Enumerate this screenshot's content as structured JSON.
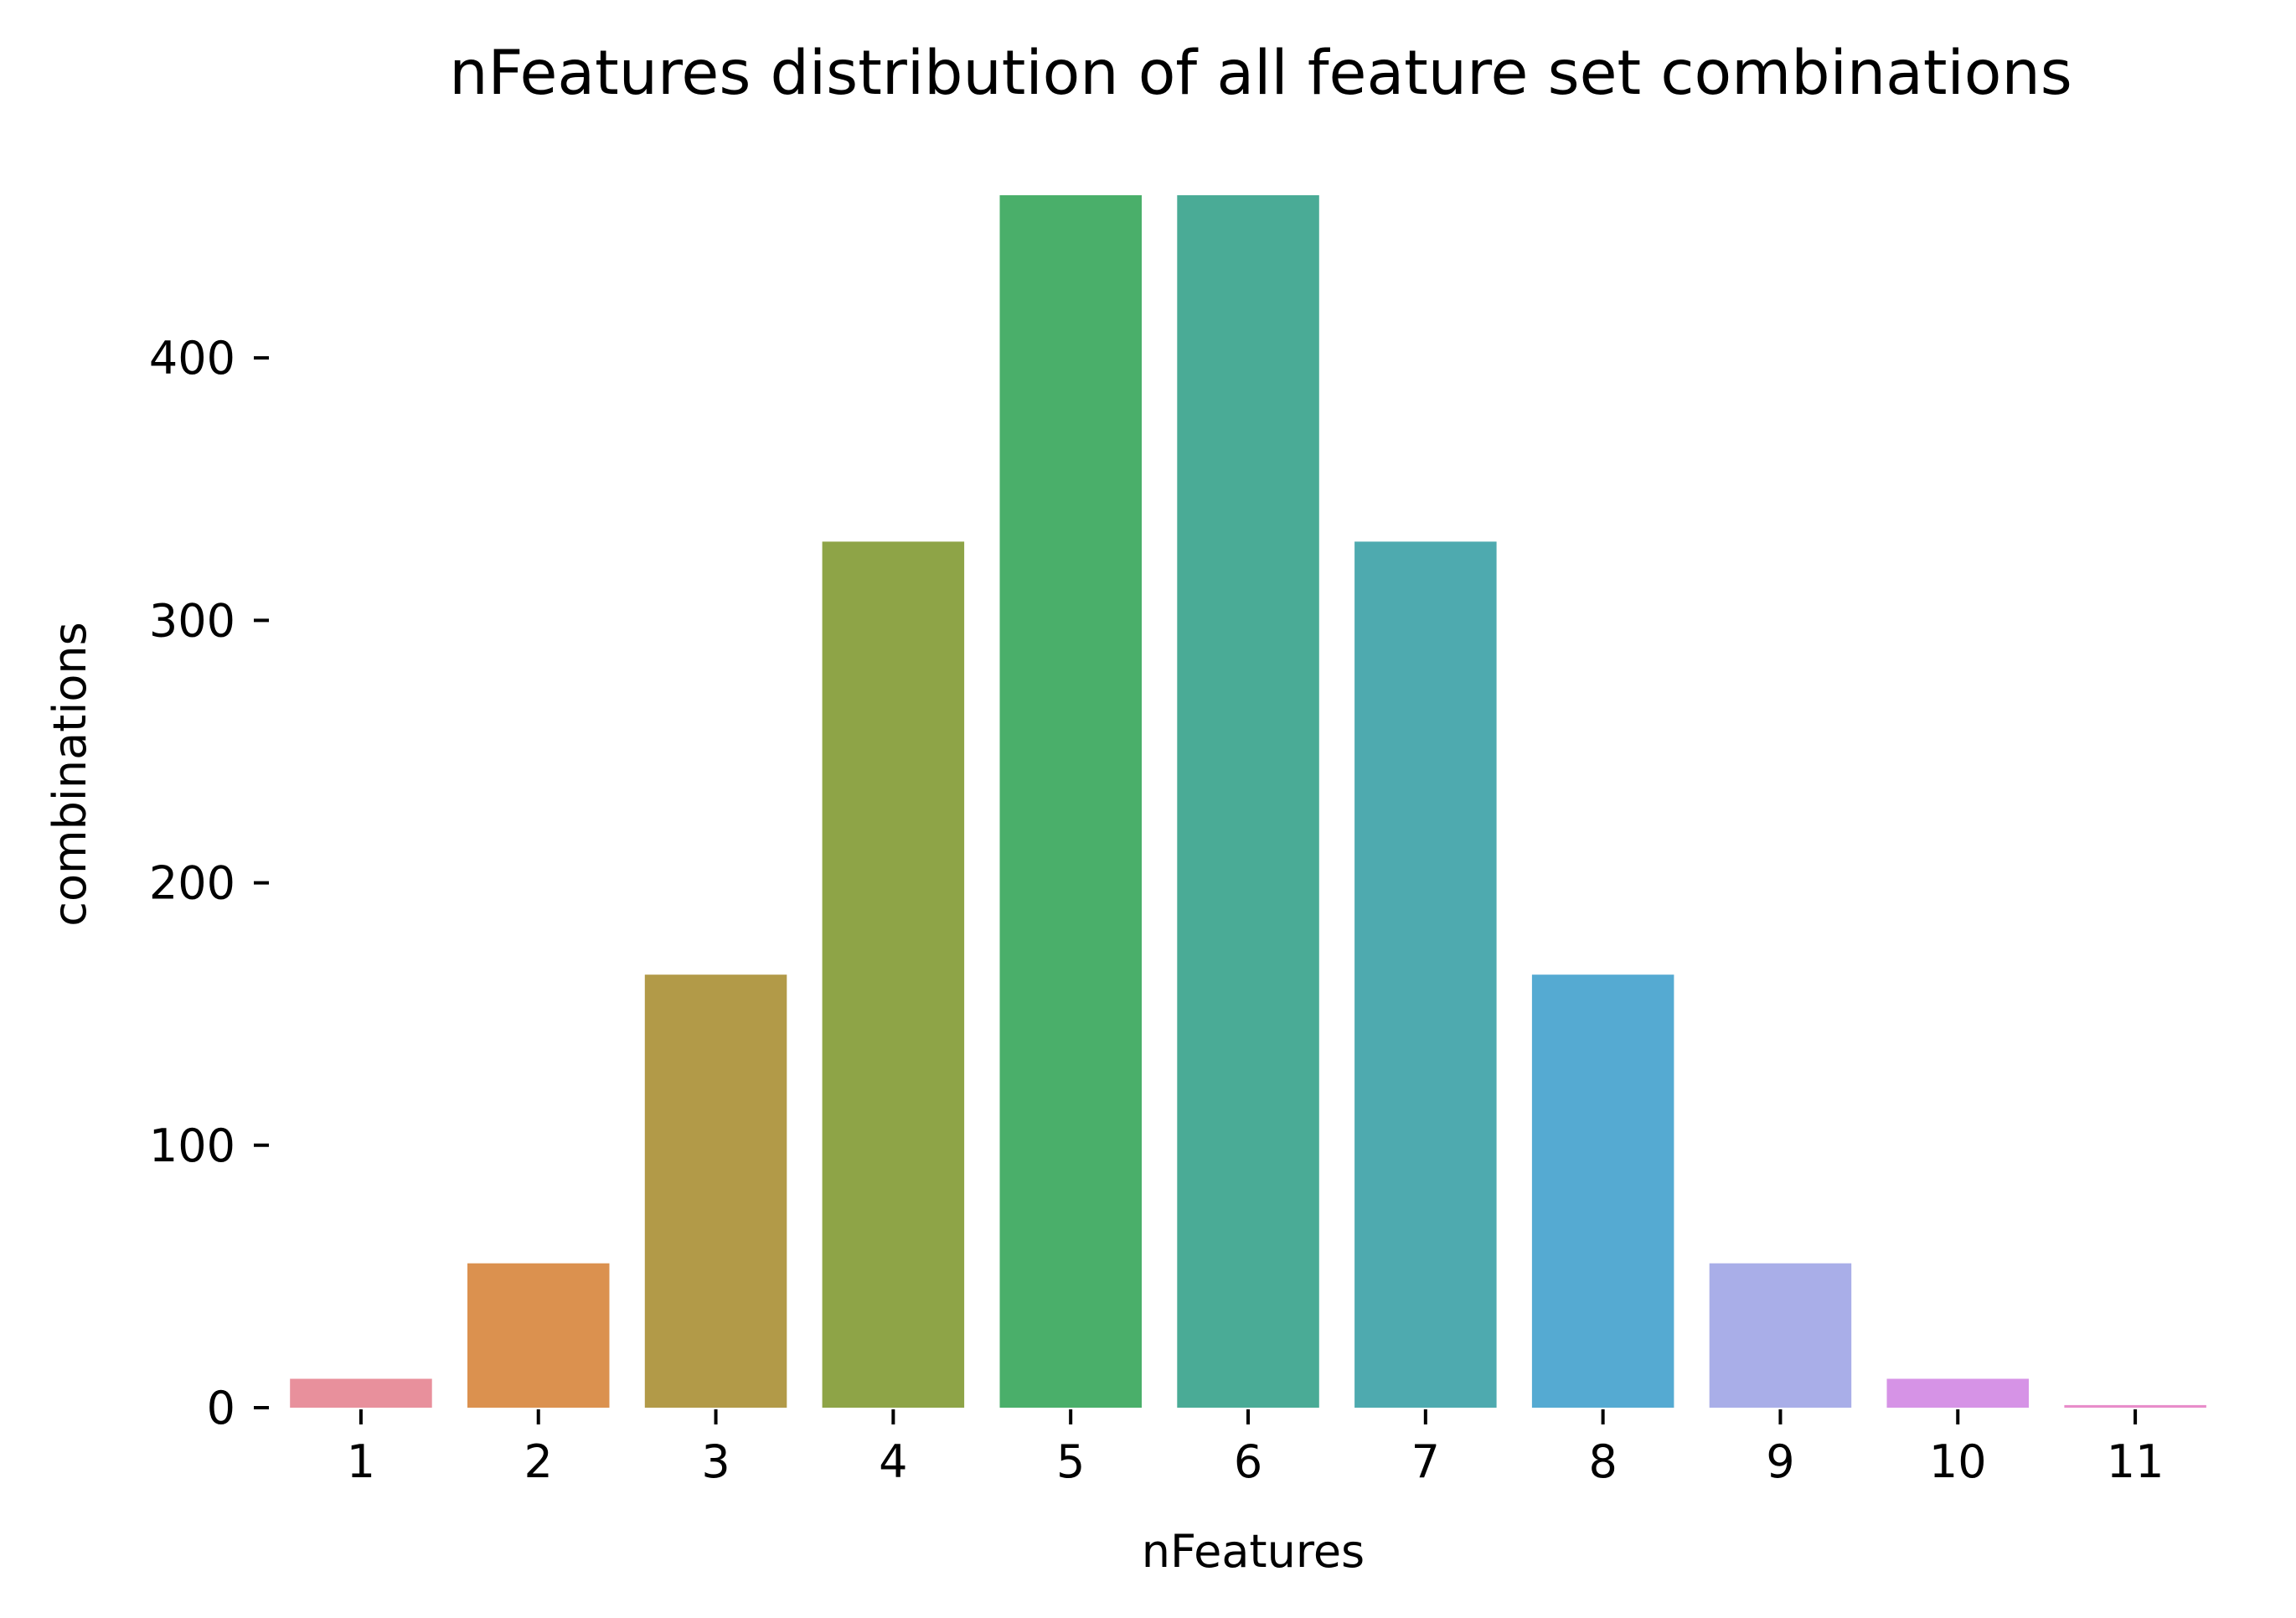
{
  "chart_data": {
    "type": "bar",
    "title": "nFeatures distribution of all feature set combinations",
    "xlabel": "nFeatures",
    "ylabel": "combinations",
    "categories": [
      "1",
      "2",
      "3",
      "4",
      "5",
      "6",
      "7",
      "8",
      "9",
      "10",
      "11"
    ],
    "values": [
      11,
      55,
      165,
      330,
      462,
      462,
      330,
      165,
      55,
      11,
      1
    ],
    "colors": [
      "#e8909c",
      "#db914f",
      "#b29a48",
      "#8ea447",
      "#4aaf6a",
      "#4aab96",
      "#4eaaaf",
      "#55aad2",
      "#a9aee8",
      "#d693e6",
      "#e88dca"
    ],
    "ylim": [
      0,
      462
    ],
    "yticks": [
      0,
      100,
      200,
      300,
      400
    ],
    "grid": false,
    "legend": "none"
  }
}
